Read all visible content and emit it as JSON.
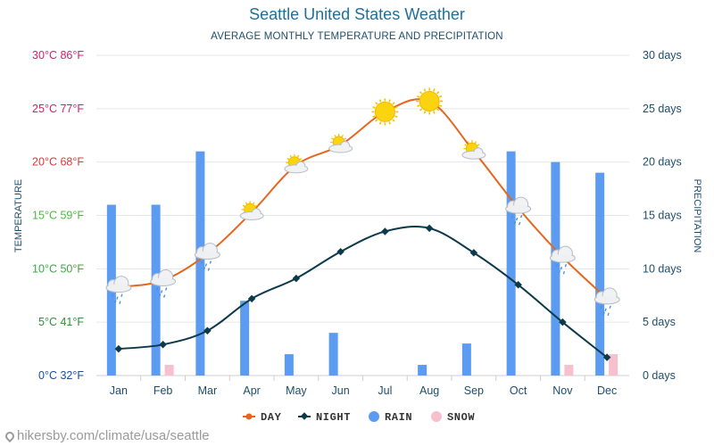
{
  "title": "Seattle United States Weather",
  "subtitle": "AVERAGE MONTHLY TEMPERATURE AND PRECIPITATION",
  "footer": "hikersby.com/climate/usa/seattle",
  "chart_data": {
    "type": "line",
    "categories": [
      "Jan",
      "Feb",
      "Mar",
      "Apr",
      "May",
      "Jun",
      "Jul",
      "Aug",
      "Sep",
      "Oct",
      "Nov",
      "Dec"
    ],
    "left_axis": {
      "label": "TEMPERATURE",
      "range": [
        0,
        30
      ],
      "ticks": [
        {
          "value": 0,
          "label": "0°C 32°F",
          "color": "#1a4fa0"
        },
        {
          "value": 5,
          "label": "5°C 41°F",
          "color": "#2f8f3a"
        },
        {
          "value": 10,
          "label": "10°C 50°F",
          "color": "#3aa84a"
        },
        {
          "value": 15,
          "label": "15°C 59°F",
          "color": "#4dba3f"
        },
        {
          "value": 20,
          "label": "20°C 68°F",
          "color": "#d93a3a"
        },
        {
          "value": 25,
          "label": "25°C 77°F",
          "color": "#d41f6a"
        },
        {
          "value": 30,
          "label": "30°C 86°F",
          "color": "#d4206e"
        }
      ]
    },
    "right_axis": {
      "label": "PRECIPITATION",
      "range": [
        0,
        30
      ],
      "color": "#1e4d6b",
      "ticks": [
        {
          "value": 0,
          "label": "0 days"
        },
        {
          "value": 5,
          "label": "5 days"
        },
        {
          "value": 10,
          "label": "10 days"
        },
        {
          "value": 15,
          "label": "15 days"
        },
        {
          "value": 20,
          "label": "20 days"
        },
        {
          "value": 25,
          "label": "25 days"
        },
        {
          "value": 30,
          "label": "30 days"
        }
      ]
    },
    "series": [
      {
        "name": "DAY",
        "kind": "line",
        "axis": "left",
        "color": "#e5661e",
        "values": [
          8.3,
          8.9,
          11.4,
          15.3,
          19.7,
          21.6,
          24.7,
          25.7,
          21.0,
          15.7,
          11.1,
          7.2
        ]
      },
      {
        "name": "NIGHT",
        "kind": "line",
        "axis": "left",
        "color": "#0d3a4a",
        "values": [
          2.5,
          2.9,
          4.2,
          7.2,
          9.1,
          11.6,
          13.5,
          13.8,
          11.5,
          8.5,
          5.0,
          1.7
        ]
      },
      {
        "name": "RAIN",
        "kind": "bar",
        "axis": "right",
        "color": "#5b9cf2",
        "values": [
          16,
          16,
          21,
          7,
          2,
          4,
          0,
          1,
          3,
          21,
          20,
          19
        ]
      },
      {
        "name": "SNOW",
        "kind": "bar",
        "axis": "right",
        "color": "#f7c0cf",
        "values": [
          0,
          1,
          0,
          0,
          0,
          0,
          0,
          0,
          0,
          0,
          1,
          2
        ]
      }
    ],
    "weather_icons": [
      "rain-cloud",
      "rain-cloud",
      "rain-cloud",
      "partly-sunny",
      "partly-sunny",
      "partly-sunny",
      "sun",
      "sun",
      "partly-sunny",
      "rain-cloud",
      "rain-cloud",
      "rain-cloud"
    ],
    "grid": true,
    "legend_position": "bottom"
  }
}
